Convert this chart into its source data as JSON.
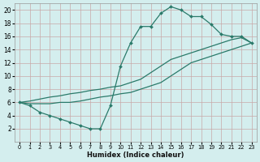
{
  "xlabel": "Humidex (Indice chaleur)",
  "bg_color": "#d4eeee",
  "grid_color": "#b8d8d8",
  "line_color": "#2a7a6a",
  "xlim": [
    -0.5,
    23.5
  ],
  "ylim": [
    0,
    21
  ],
  "xticks": [
    0,
    1,
    2,
    3,
    4,
    5,
    6,
    7,
    8,
    9,
    10,
    11,
    12,
    13,
    14,
    15,
    16,
    17,
    18,
    19,
    20,
    21,
    22,
    23
  ],
  "yticks": [
    2,
    4,
    6,
    8,
    10,
    12,
    14,
    16,
    18,
    20
  ],
  "curve_main_x": [
    0,
    1,
    2,
    3,
    4,
    5,
    6,
    7,
    8,
    9,
    10,
    11,
    12,
    13,
    14,
    15,
    16,
    17,
    18,
    19,
    20,
    21,
    22,
    23
  ],
  "curve_main_y": [
    6,
    5.5,
    4.5,
    4.0,
    3.5,
    3.0,
    2.5,
    2.0,
    2.0,
    5.5,
    11.5,
    15.0,
    17.5,
    17.5,
    19.5,
    20.5,
    20.0,
    19.0,
    19.0,
    17.8,
    16.3,
    16.0,
    16.0,
    15.0
  ],
  "curve_upper_x": [
    0,
    1,
    2,
    3,
    4,
    5,
    6,
    7,
    8,
    9,
    10,
    11,
    12,
    13,
    14,
    15,
    16,
    17,
    18,
    19,
    20,
    21,
    22,
    23
  ],
  "curve_upper_y": [
    6.0,
    6.2,
    6.5,
    6.8,
    7.0,
    7.3,
    7.5,
    7.8,
    8.0,
    8.3,
    8.5,
    9.0,
    9.5,
    10.5,
    11.5,
    12.5,
    13.0,
    13.5,
    14.0,
    14.5,
    15.0,
    15.5,
    15.8,
    15.0
  ],
  "curve_lower_x": [
    0,
    1,
    2,
    3,
    4,
    5,
    6,
    7,
    8,
    9,
    10,
    11,
    12,
    13,
    14,
    15,
    16,
    17,
    18,
    19,
    20,
    21,
    22,
    23
  ],
  "curve_lower_y": [
    6.0,
    5.8,
    5.8,
    5.8,
    6.0,
    6.0,
    6.2,
    6.5,
    6.8,
    7.0,
    7.3,
    7.5,
    8.0,
    8.5,
    9.0,
    10.0,
    11.0,
    12.0,
    12.5,
    13.0,
    13.5,
    14.0,
    14.5,
    15.0
  ]
}
